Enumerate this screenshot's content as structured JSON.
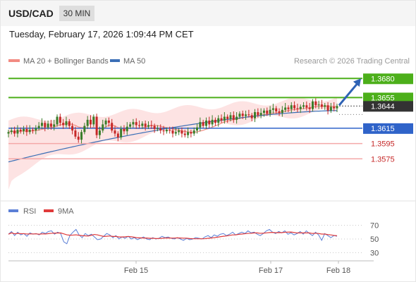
{
  "header": {
    "symbol": "USD/CAD",
    "interval": "30 MIN",
    "datetime": "Tuesday, February 17, 2026 1:09:44 PM CET",
    "copyright": "Research © 2026 Trading Central"
  },
  "colors": {
    "up_candle": "#3a7d2a",
    "down_candle": "#c62828",
    "bollinger_fill": "#fde3e3",
    "ma20": "#f28b82",
    "ma50": "#3b6fb6",
    "green_level": "#4caf1a",
    "blue_level": "#2f63c9",
    "red_level": "#f4a8a8",
    "current_price_bg": "#333333",
    "arrow": "#2f63b5",
    "rsi": "#5b7fd6",
    "rsi_ma": "#e03a3a"
  },
  "chart_data": [
    {
      "type": "candlestick",
      "legend": [
        {
          "label": "MA 20 + Bollinger Bands",
          "color": "#f28b82"
        },
        {
          "label": "MA 50",
          "color": "#3b6fb6"
        }
      ],
      "x_ticks": [
        "Feb 15",
        "Feb 17",
        "Feb 18"
      ],
      "ylim": [
        1.352,
        1.3695
      ],
      "current_price": 1.3644,
      "levels": [
        {
          "label": "1.3680",
          "value": 1.368,
          "kind": "resistance",
          "color": "#4caf1a"
        },
        {
          "label": "1.3655",
          "value": 1.3655,
          "kind": "resistance",
          "color": "#4caf1a"
        },
        {
          "label": "1.3615",
          "value": 1.3615,
          "kind": "pivot",
          "color": "#2f63c9"
        },
        {
          "label": "1.3595",
          "value": 1.3595,
          "kind": "support",
          "color": "#f4a8a8"
        },
        {
          "label": "1.3575",
          "value": 1.3575,
          "kind": "support",
          "color": "#f4a8a8"
        }
      ],
      "current_label": "1.3644",
      "projection": {
        "from": 1.3645,
        "to": 1.368
      },
      "close": [
        1.361,
        1.3612,
        1.3608,
        1.3613,
        1.3611,
        1.3614,
        1.361,
        1.3613,
        1.3612,
        1.3615,
        1.3618,
        1.3622,
        1.3616,
        1.3621,
        1.3617,
        1.362,
        1.363,
        1.3622,
        1.3619,
        1.3624,
        1.3618,
        1.3612,
        1.3604,
        1.36,
        1.361,
        1.3618,
        1.3626,
        1.362,
        1.363,
        1.3606,
        1.3612,
        1.362,
        1.3625,
        1.3622,
        1.3612,
        1.3608,
        1.3603,
        1.3614,
        1.3611,
        1.3617,
        1.362,
        1.3623,
        1.3619,
        1.3618,
        1.3621,
        1.3617,
        1.3619,
        1.3618,
        1.3614,
        1.3615,
        1.3612,
        1.3611,
        1.3613,
        1.3612,
        1.3608,
        1.361,
        1.3612,
        1.3608,
        1.3606,
        1.361,
        1.3608,
        1.3612,
        1.3616,
        1.3623,
        1.3618,
        1.3625,
        1.362,
        1.3626,
        1.3622,
        1.3628,
        1.3625,
        1.363,
        1.3627,
        1.3632,
        1.3626,
        1.363,
        1.3634,
        1.3631,
        1.3633,
        1.3632,
        1.3628,
        1.3636,
        1.3632,
        1.3635,
        1.3638,
        1.3634,
        1.3639,
        1.3641,
        1.3637,
        1.3635,
        1.3639,
        1.3642,
        1.364,
        1.3645,
        1.3641,
        1.364,
        1.3643,
        1.3645,
        1.3642,
        1.364,
        1.365,
        1.3645,
        1.3646,
        1.3643,
        1.3645,
        1.3638,
        1.3643,
        1.3641,
        1.3644
      ],
      "ma50_start": 1.3571,
      "ma50_end": 1.3638,
      "band_start": [
        1.3535,
        1.3625
      ],
      "band_end": [
        1.3638,
        1.3655
      ]
    },
    {
      "type": "line",
      "name": "RSI panel",
      "legend": [
        {
          "label": "RSI",
          "color": "#5b7fd6"
        },
        {
          "label": "9MA",
          "color": "#e03a3a"
        }
      ],
      "y_ticks": [
        "70",
        "50",
        "30"
      ],
      "ylim": [
        20,
        80
      ],
      "reference_lines": [
        70,
        50,
        30
      ],
      "rsi": [
        57,
        61,
        55,
        60,
        56,
        58,
        54,
        59,
        57,
        58,
        56,
        60,
        58,
        61,
        62,
        57,
        60,
        58,
        46,
        43,
        55,
        60,
        64,
        56,
        52,
        58,
        55,
        57,
        53,
        49,
        50,
        54,
        58,
        56,
        52,
        55,
        50,
        53,
        51,
        54,
        50,
        52,
        49,
        51,
        53,
        50,
        49,
        52,
        50,
        51,
        54,
        52,
        53,
        51,
        50,
        52,
        50,
        48,
        51,
        49,
        50,
        52,
        51,
        50,
        53,
        55,
        52,
        56,
        54,
        57,
        58,
        55,
        57,
        60,
        56,
        58,
        60,
        58,
        62,
        59,
        60,
        57,
        55,
        58,
        62,
        64,
        60,
        58,
        61,
        59,
        62,
        57,
        59,
        56,
        58,
        61,
        57,
        62,
        58,
        55,
        60,
        56,
        48,
        58,
        55,
        52,
        55,
        54
      ],
      "ma9_start": 59,
      "ma9_end": 55
    }
  ]
}
